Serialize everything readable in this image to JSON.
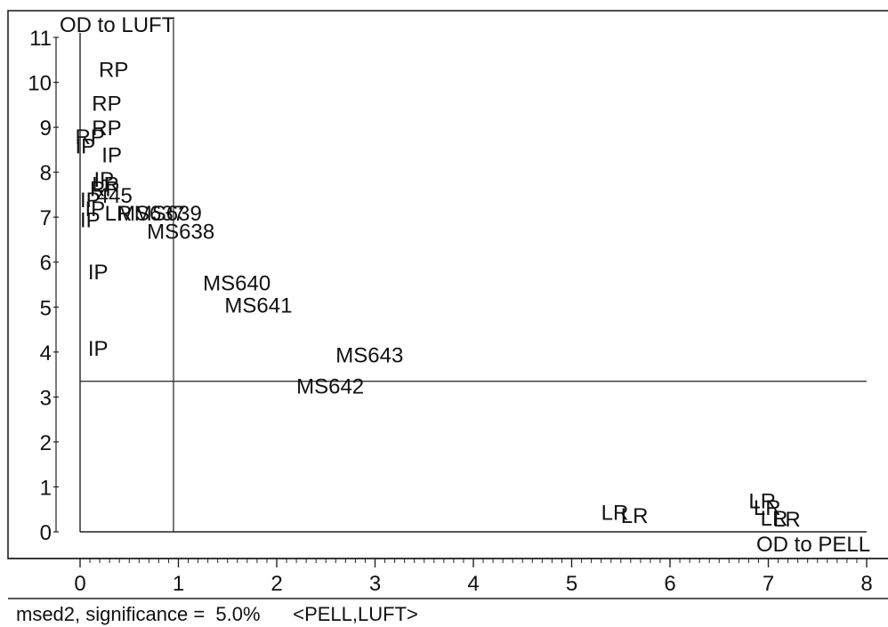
{
  "chart_data": {
    "type": "scatter",
    "title": "",
    "xlabel": "OD to PELL",
    "ylabel": "OD to LUFT",
    "xlim": [
      0,
      8
    ],
    "ylim": [
      0,
      11
    ],
    "x_ticks": [
      "0",
      "1",
      "2",
      "3",
      "4",
      "5",
      "6",
      "7",
      "8"
    ],
    "y_ticks": [
      "0",
      "1",
      "2",
      "3",
      "4",
      "5",
      "6",
      "7",
      "8",
      "9",
      "10",
      "11"
    ],
    "grid": false,
    "threshold_x": 0.95,
    "threshold_y": 3.35,
    "points": [
      {
        "label": "RP",
        "x": 0.19,
        "y": 10.3
      },
      {
        "label": "RP",
        "x": 0.12,
        "y": 9.55
      },
      {
        "label": "RP",
        "x": 0.12,
        "y": 9.0
      },
      {
        "label": "RP",
        "x": -0.05,
        "y": 8.8
      },
      {
        "label": "IP",
        "x": -0.05,
        "y": 8.6
      },
      {
        "label": "IP",
        "x": 0.22,
        "y": 8.4
      },
      {
        "label": "IP",
        "x": 0.14,
        "y": 7.85
      },
      {
        "label": "LR",
        "x": 0.12,
        "y": 7.75
      },
      {
        "label": "RP",
        "x": 0.1,
        "y": 7.65
      },
      {
        "label": "IP",
        "x": 0.0,
        "y": 7.4
      },
      {
        "label": "445",
        "x": 0.17,
        "y": 7.5
      },
      {
        "label": "IP",
        "x": 0.05,
        "y": 7.2
      },
      {
        "label": "MS639",
        "x": 0.55,
        "y": 7.1
      },
      {
        "label": "MS637",
        "x": 0.38,
        "y": 7.1
      },
      {
        "label": "LR",
        "x": 0.25,
        "y": 7.1
      },
      {
        "label": "IP",
        "x": 0.0,
        "y": 6.95
      },
      {
        "label": "MS638",
        "x": 0.68,
        "y": 6.7
      },
      {
        "label": "IP",
        "x": 0.08,
        "y": 5.8
      },
      {
        "label": "MS640",
        "x": 1.25,
        "y": 5.55
      },
      {
        "label": "MS641",
        "x": 1.47,
        "y": 5.05
      },
      {
        "label": "IP",
        "x": 0.08,
        "y": 4.1
      },
      {
        "label": "MS643",
        "x": 2.6,
        "y": 3.95
      },
      {
        "label": "MS642",
        "x": 2.2,
        "y": 3.25
      },
      {
        "label": "LR",
        "x": 5.3,
        "y": 0.45
      },
      {
        "label": "LR",
        "x": 5.5,
        "y": 0.38
      },
      {
        "label": "LR",
        "x": 6.8,
        "y": 0.7
      },
      {
        "label": "LR",
        "x": 6.85,
        "y": 0.55
      },
      {
        "label": "LR",
        "x": 6.92,
        "y": 0.32
      },
      {
        "label": "LR",
        "x": 7.05,
        "y": 0.3
      }
    ]
  },
  "footer": {
    "method": "msed2, significance =  5.0%",
    "pair": "<PELL,LUFT>"
  }
}
